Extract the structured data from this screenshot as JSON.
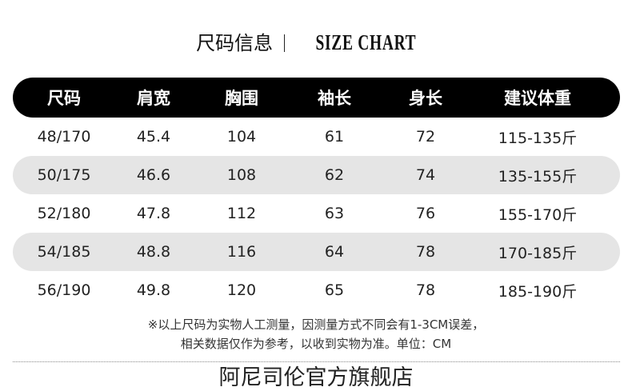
{
  "title": {
    "cn": "尺码信息",
    "en": "SIZE CHART"
  },
  "table": {
    "headers": [
      "尺码",
      "肩宽",
      "胸围",
      "袖长",
      "身长",
      "建议体重"
    ],
    "rows": [
      [
        "48/170",
        "45.4",
        "104",
        "61",
        "72",
        "115-135斤"
      ],
      [
        "50/175",
        "46.6",
        "108",
        "62",
        "74",
        "135-155斤"
      ],
      [
        "52/180",
        "47.8",
        "112",
        "63",
        "76",
        "155-170斤"
      ],
      [
        "54/185",
        "48.8",
        "116",
        "64",
        "78",
        "170-185斤"
      ],
      [
        "56/190",
        "49.8",
        "120",
        "65",
        "78",
        "185-190斤"
      ]
    ]
  },
  "notes": [
    "※以上尺码为实物人工测量，因测量方式不同会有1-3CM误差，",
    "相关数据仅作为参考，以收到实物为准。单位：CM"
  ],
  "watermark": "阿尼司伦官方旗舰店",
  "colors": {
    "header_bg": "#000000",
    "stripe": "#e5e5e5"
  }
}
